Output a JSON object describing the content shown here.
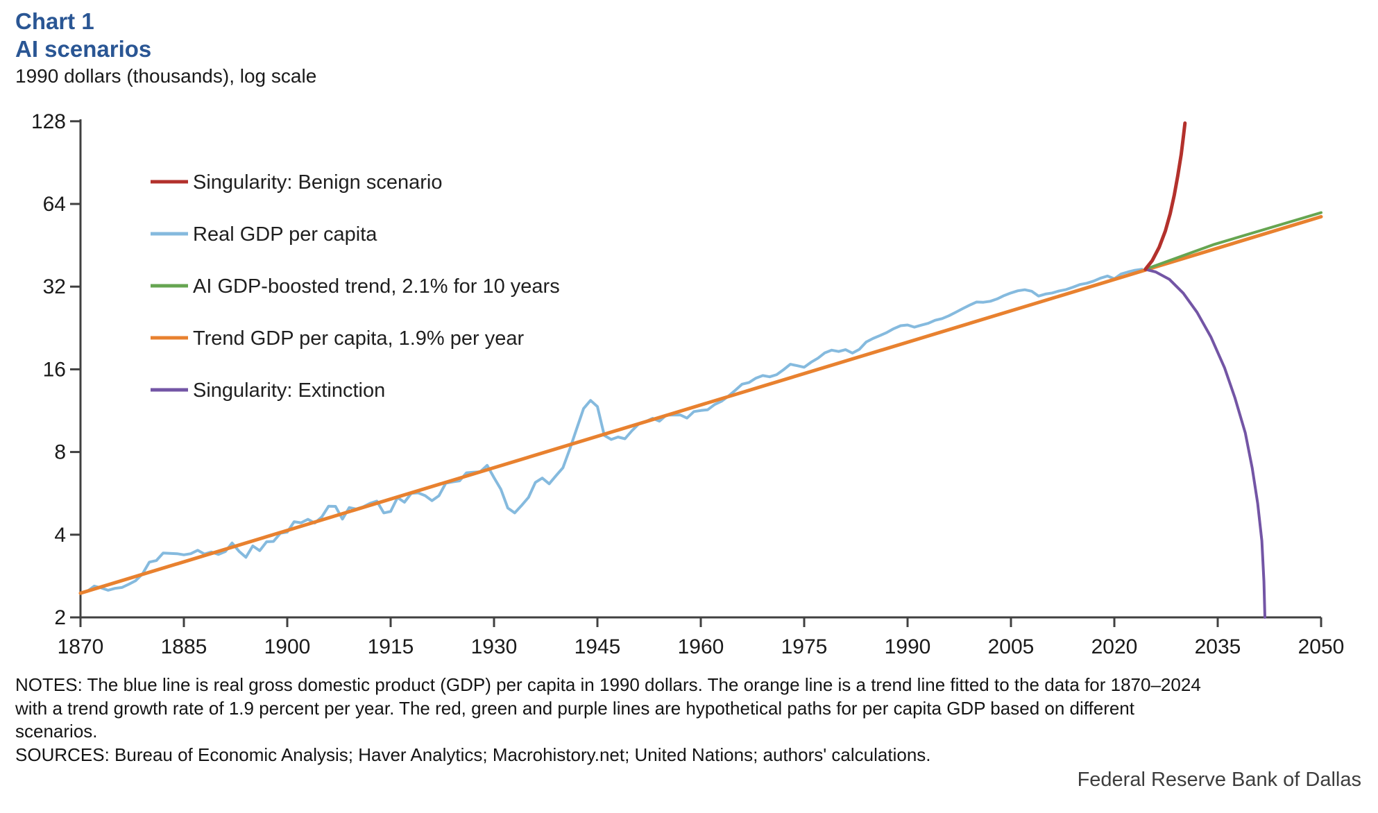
{
  "header": {
    "chart_label": "Chart 1",
    "title": "AI scenarios",
    "subtitle": "1990 dollars (thousands), log scale"
  },
  "notes": {
    "lines": [
      "NOTES: The blue line is real gross domestic product (GDP) per capita in 1990 dollars. The orange line is a trend line fitted to the data for 1870–2024",
      "with a trend growth rate of 1.9 percent per year. The red, green and purple lines are hypothetical paths for per capita GDP based on different",
      "scenarios."
    ],
    "sources": "SOURCES: Bureau of Economic Analysis; Haver Analytics; Macrohistory.net; United Nations; authors' calculations."
  },
  "footer": {
    "attribution": "Federal Reserve Bank of Dallas"
  },
  "colors": {
    "title_blue": "#2a5694",
    "axis": "#404040",
    "benign_red": "#b3312c",
    "gdp_blue": "#85bade",
    "ai_green": "#66a551",
    "trend_orange": "#e8812f",
    "extinction_purple": "#7355a5"
  },
  "chart_data": {
    "type": "line",
    "title": "AI scenarios",
    "subtitle": "1990 dollars (thousands), log scale",
    "y_scale": "log2",
    "grid": false,
    "y_axis": {
      "ticks": [
        128,
        64,
        32,
        16,
        8,
        4,
        2
      ],
      "range": [
        2,
        128
      ]
    },
    "x_axis": {
      "ticks": [
        1870,
        1885,
        1900,
        1915,
        1930,
        1945,
        1960,
        1975,
        1990,
        2005,
        2020,
        2035,
        2050
      ],
      "range": [
        1870,
        2050
      ]
    },
    "legend": {
      "position": "upper-left",
      "items": [
        {
          "label": "Singularity: Benign scenario",
          "color": "#b3312c"
        },
        {
          "label": "Real GDP per capita",
          "color": "#85bade"
        },
        {
          "label": "AI GDP-boosted trend, 2.1% for 10 years",
          "color": "#66a551"
        },
        {
          "label": "Trend GDP per capita, 1.9% per year",
          "color": "#e8812f"
        },
        {
          "label": "Singularity: Extinction",
          "color": "#7355a5"
        }
      ]
    },
    "series": [
      {
        "name": "Real GDP per capita",
        "color": "#85bade",
        "width": 4,
        "start_year": 1870,
        "values": [
          2.45,
          2.49,
          2.6,
          2.56,
          2.51,
          2.55,
          2.57,
          2.64,
          2.72,
          2.88,
          3.18,
          3.22,
          3.43,
          3.42,
          3.41,
          3.38,
          3.41,
          3.51,
          3.4,
          3.46,
          3.39,
          3.47,
          3.73,
          3.48,
          3.31,
          3.64,
          3.5,
          3.77,
          3.78,
          4.05,
          4.09,
          4.46,
          4.42,
          4.55,
          4.41,
          4.64,
          5.08,
          5.07,
          4.56,
          5.02,
          4.96,
          5.05,
          5.2,
          5.3,
          4.8,
          4.86,
          5.46,
          5.25,
          5.66,
          5.68,
          5.55,
          5.32,
          5.54,
          6.16,
          6.23,
          6.28,
          6.72,
          6.75,
          6.78,
          7.15,
          6.45,
          5.85,
          5.0,
          4.8,
          5.11,
          5.47,
          6.2,
          6.43,
          6.13,
          6.56,
          7.01,
          8.21,
          9.74,
          11.52,
          12.33,
          11.71,
          9.2,
          8.89,
          9.07,
          8.94,
          9.56,
          10.12,
          10.32,
          10.61,
          10.36,
          10.9,
          10.91,
          10.92,
          10.63,
          11.23,
          11.33,
          11.4,
          11.91,
          12.24,
          12.77,
          13.42,
          14.13,
          14.33,
          14.86,
          15.18,
          15.03,
          15.3,
          15.94,
          16.69,
          16.49,
          16.28,
          16.98,
          17.57,
          18.37,
          18.79,
          18.58,
          18.86,
          18.33,
          18.92,
          20.12,
          20.72,
          21.24,
          21.79,
          22.5,
          23.06,
          23.2,
          22.79,
          23.17,
          23.53,
          24.13,
          24.48,
          25.07,
          25.82,
          26.62,
          27.4,
          28.13,
          28.08,
          28.31,
          28.87,
          29.69,
          30.35,
          30.91,
          31.18,
          30.8,
          29.57,
          30.07,
          30.35,
          30.87,
          31.23,
          31.86,
          32.56,
          32.93,
          33.53,
          34.38,
          34.98,
          34.17,
          35.6,
          36.2,
          36.7,
          37.0
        ]
      },
      {
        "name": "Trend GDP per capita, 1.9% per year",
        "color": "#e8812f",
        "width": 5,
        "points": [
          [
            1870,
            2.45
          ],
          [
            2050,
            57.5
          ]
        ]
      },
      {
        "name": "AI GDP-boosted trend, 2.1% for 10 years",
        "color": "#66a551",
        "width": 4,
        "points": [
          [
            2024.5,
            37.0
          ],
          [
            2034.5,
            45.6
          ],
          [
            2050,
            59.5
          ]
        ]
      },
      {
        "name": "Singularity: Extinction",
        "color": "#7355a5",
        "width": 4,
        "points": [
          [
            2024.5,
            37.0
          ],
          [
            2026,
            36.2
          ],
          [
            2028,
            34.0
          ],
          [
            2030,
            30.3
          ],
          [
            2032,
            25.8
          ],
          [
            2034,
            21.0
          ],
          [
            2036,
            16.2
          ],
          [
            2037.5,
            12.6
          ],
          [
            2039,
            9.4
          ],
          [
            2040,
            7.0
          ],
          [
            2040.8,
            5.2
          ],
          [
            2041.4,
            3.8
          ],
          [
            2041.7,
            2.7
          ],
          [
            2041.85,
            2.0
          ]
        ]
      },
      {
        "name": "Singularity: Benign scenario",
        "color": "#b3312c",
        "width": 5,
        "points": [
          [
            2024.5,
            37.0
          ],
          [
            2025.5,
            39.8
          ],
          [
            2026.5,
            44.5
          ],
          [
            2027.4,
            51.0
          ],
          [
            2028.1,
            59.0
          ],
          [
            2028.7,
            69.0
          ],
          [
            2029.2,
            81.0
          ],
          [
            2029.7,
            97.0
          ],
          [
            2030.05,
            114.0
          ],
          [
            2030.25,
            126.0
          ]
        ]
      }
    ]
  }
}
